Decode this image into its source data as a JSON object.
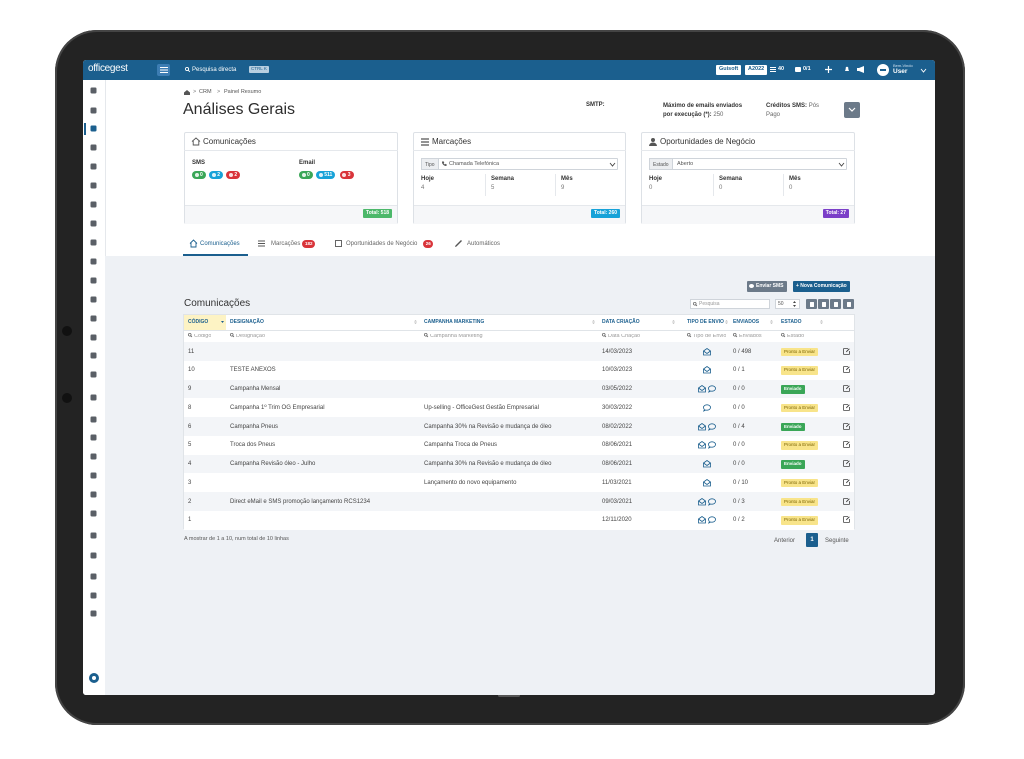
{
  "topbar": {
    "logo": "officegest",
    "search": "Pesquisa directa",
    "shortcut": "CTRL K",
    "company": "Guisoft",
    "year": "A2022",
    "tasks": 40,
    "messages": "0/1",
    "welcome": "Bem-Vindo",
    "user": "User"
  },
  "breadcrumb": [
    "CRM",
    "Painel Resumo"
  ],
  "title": "Análises Gerais",
  "info": {
    "smtp_label": "SMTP:",
    "max_emails_label": "Máximo de emails enviados por execução (*):",
    "max_emails_value": 250,
    "sms_credits_label": "Créditos SMS:",
    "sms_credits_value": "Pós Pago"
  },
  "cards": [
    {
      "title": "Comunicações",
      "groups": [
        {
          "label": "SMS",
          "badges": [
            0,
            2,
            2
          ]
        },
        {
          "label": "Email",
          "badges": [
            0,
            511,
            3
          ]
        }
      ],
      "total": "Total: 518"
    },
    {
      "title": "Marcações",
      "filter_label": "Tipo",
      "filter_value": "Chamada Telefónica",
      "stats": [
        {
          "label": "Hoje",
          "value": 4
        },
        {
          "label": "Semana",
          "value": 5
        },
        {
          "label": "Mês",
          "value": 9
        }
      ],
      "total": "Total: 260"
    },
    {
      "title": "Oportunidades de Negócio",
      "filter_label": "Estado",
      "filter_value": "Aberto",
      "stats": [
        {
          "label": "Hoje",
          "value": 0
        },
        {
          "label": "Semana",
          "value": 0
        },
        {
          "label": "Mês",
          "value": 0
        }
      ],
      "total": "Total: 27"
    }
  ],
  "tabs": [
    {
      "label": "Comunicações"
    },
    {
      "label": "Marcações",
      "count": 182
    },
    {
      "label": "Oportunidades de Negócio",
      "count": 26
    },
    {
      "label": "Automáticos"
    }
  ],
  "table": {
    "buttons": [
      "Enviar SMS",
      "+ Nova Comunicação"
    ],
    "title": "Comunicações",
    "search": "Pesquisa",
    "page_size": 50,
    "columns": [
      "CÓDIGO",
      "DESIGNAÇÃO",
      "CAMPANHA MARKETING",
      "DATA CRIAÇÃO",
      "TIPO DE ENVIO",
      "ENVIADOS",
      "ESTADO"
    ],
    "filters": [
      "Código",
      "Designação",
      "Campanha Marketing",
      "Data Criação",
      "Tipo de Envio",
      "Enviados",
      "Estado"
    ],
    "rows": [
      [
        11,
        null,
        null,
        "14/03/2023",
        [
          "email"
        ],
        "0 / 498",
        "Pronto a Enviar"
      ],
      [
        10,
        "TESTE ANEXOS",
        null,
        "10/03/2023",
        [
          "email"
        ],
        "0 / 1",
        "Pronto a Enviar"
      ],
      [
        9,
        "Campanha Mensal",
        null,
        "03/05/2022",
        [
          "email",
          "sms"
        ],
        "0 / 0",
        "Enviado"
      ],
      [
        8,
        "Campanha 1º Trim OG Empresarial",
        "Up-selling - OfficeGest Gestão Empresarial",
        "30/03/2022",
        [
          "sms"
        ],
        "0 / 0",
        "Pronto a Enviar"
      ],
      [
        6,
        "Campanha Pneus",
        "Campanha 30% na Revisão e mudança de óleo",
        "08/02/2022",
        [
          "email",
          "sms"
        ],
        "0 / 4",
        "Enviado"
      ],
      [
        5,
        "Troca dos Pneus",
        "Campanha Troca de Pneus",
        "08/06/2021",
        [
          "email",
          "sms"
        ],
        "0 / 0",
        "Pronto a Enviar"
      ],
      [
        4,
        "Campanha Revisão óleo - Julho",
        "Campanha 30% na Revisão e mudança de óleo",
        "08/06/2021",
        [
          "email"
        ],
        "0 / 0",
        "Enviado"
      ],
      [
        3,
        null,
        "Lançamento do novo equipamento",
        "11/03/2021",
        [
          "email"
        ],
        "0 / 10",
        "Pronto a Enviar"
      ],
      [
        2,
        "Direct eMail e SMS promoção lançamento RCS1234",
        null,
        "09/03/2021",
        [
          "email",
          "sms"
        ],
        "0 / 3",
        "Pronto a Enviar"
      ],
      [
        1,
        null,
        null,
        "12/11/2020",
        [
          "email",
          "sms"
        ],
        "0 / 2",
        "Pronto a Enviar"
      ]
    ]
  },
  "footer": {
    "summary": "A mostrar de 1 a 10, num total de 10 linhas",
    "prev": "Anterior",
    "page": 1,
    "next": "Seguinte"
  }
}
